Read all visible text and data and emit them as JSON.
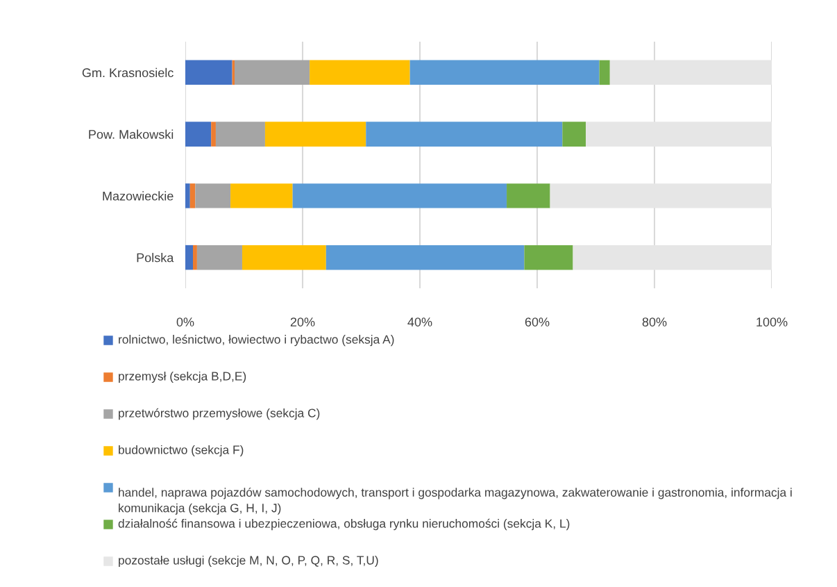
{
  "chart_data": {
    "type": "bar",
    "orientation": "horizontal",
    "stacked": true,
    "categories": [
      "Gm. Krasnosielc",
      "Pow. Makowski",
      "Mazowieckie",
      "Polska"
    ],
    "series": [
      {
        "name": "rolnictwo, leśnictwo, łowiectwo i rybactwo (seksja A)",
        "color": "#4472c4",
        "values": [
          8.0,
          4.4,
          0.8,
          1.3
        ]
      },
      {
        "name": "przemysł (sekcja B,D,E)",
        "color": "#ed7d31",
        "values": [
          0.4,
          0.8,
          0.9,
          0.7
        ]
      },
      {
        "name": "przetwórstwo przemysłowe (sekcja C)",
        "color": "#a5a5a5",
        "values": [
          12.8,
          8.4,
          6.0,
          7.7
        ]
      },
      {
        "name": "budownictwo (sekcja F)",
        "color": "#ffc000",
        "values": [
          17.1,
          17.2,
          10.6,
          14.3
        ]
      },
      {
        "name": "handel, naprawa pojazdów samochodowych, transport i gospodarka magazynowa, zakwaterowanie i gastronomia, informacja i komunikacja (sekcja G, H, I, J)",
        "color": "#5b9bd5",
        "values": [
          32.3,
          33.5,
          36.5,
          33.8
        ]
      },
      {
        "name": "działalność finansowa i ubezpieczeniowa, obsługa rynku nieruchomości (sekcja K, L)",
        "color": "#70ad47",
        "values": [
          1.8,
          4.0,
          7.4,
          8.3
        ]
      },
      {
        "name": "pozostałe usługi (sekcje M, N, O, P, Q, R, S, T,U)",
        "color": "#e6e6e6",
        "values": [
          27.6,
          31.7,
          37.8,
          33.9
        ]
      }
    ],
    "xlim": [
      0,
      100
    ],
    "xticks": [
      {
        "value": 0,
        "label": "0%"
      },
      {
        "value": 20,
        "label": "20%"
      },
      {
        "value": 40,
        "label": "40%"
      },
      {
        "value": 60,
        "label": "60%"
      },
      {
        "value": 80,
        "label": "80%"
      },
      {
        "value": 100,
        "label": "100%"
      }
    ],
    "grid": "x",
    "legend": "bottom"
  }
}
